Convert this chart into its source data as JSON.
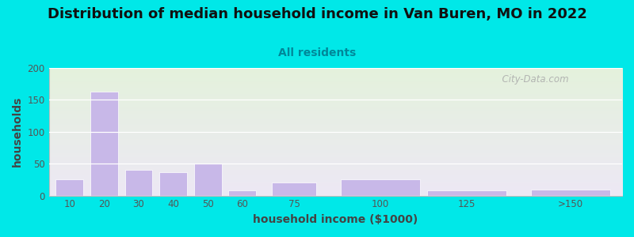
{
  "title": "Distribution of median household income in Van Buren, MO in 2022",
  "subtitle": "All residents",
  "xlabel": "household income ($1000)",
  "ylabel": "households",
  "bar_centers": [
    10,
    20,
    30,
    40,
    50,
    60,
    75,
    100,
    125,
    155
  ],
  "bar_widths": [
    8,
    8,
    8,
    8,
    8,
    8,
    13,
    23,
    23,
    23
  ],
  "bar_values": [
    25,
    163,
    40,
    37,
    50,
    8,
    20,
    25,
    8,
    10
  ],
  "xtick_positions": [
    10,
    20,
    30,
    40,
    50,
    60,
    75,
    100,
    125,
    155
  ],
  "xtick_labels": [
    "10",
    "20",
    "30",
    "40",
    "50",
    "60",
    "75",
    "100",
    "125",
    ">150"
  ],
  "bar_color": "#c8b8e8",
  "bar_edgecolor": "#c8b8e8",
  "ylim": [
    0,
    200
  ],
  "xlim": [
    4,
    170
  ],
  "yticks": [
    0,
    50,
    100,
    150,
    200
  ],
  "bg_color_topleft": "#e4f2dc",
  "bg_color_bottomright": "#ede8f5",
  "outer_bg": "#00e8e8",
  "title_fontsize": 13,
  "subtitle_fontsize": 10,
  "axis_label_fontsize": 10,
  "tick_fontsize": 8.5,
  "watermark": "  City-Data.com"
}
